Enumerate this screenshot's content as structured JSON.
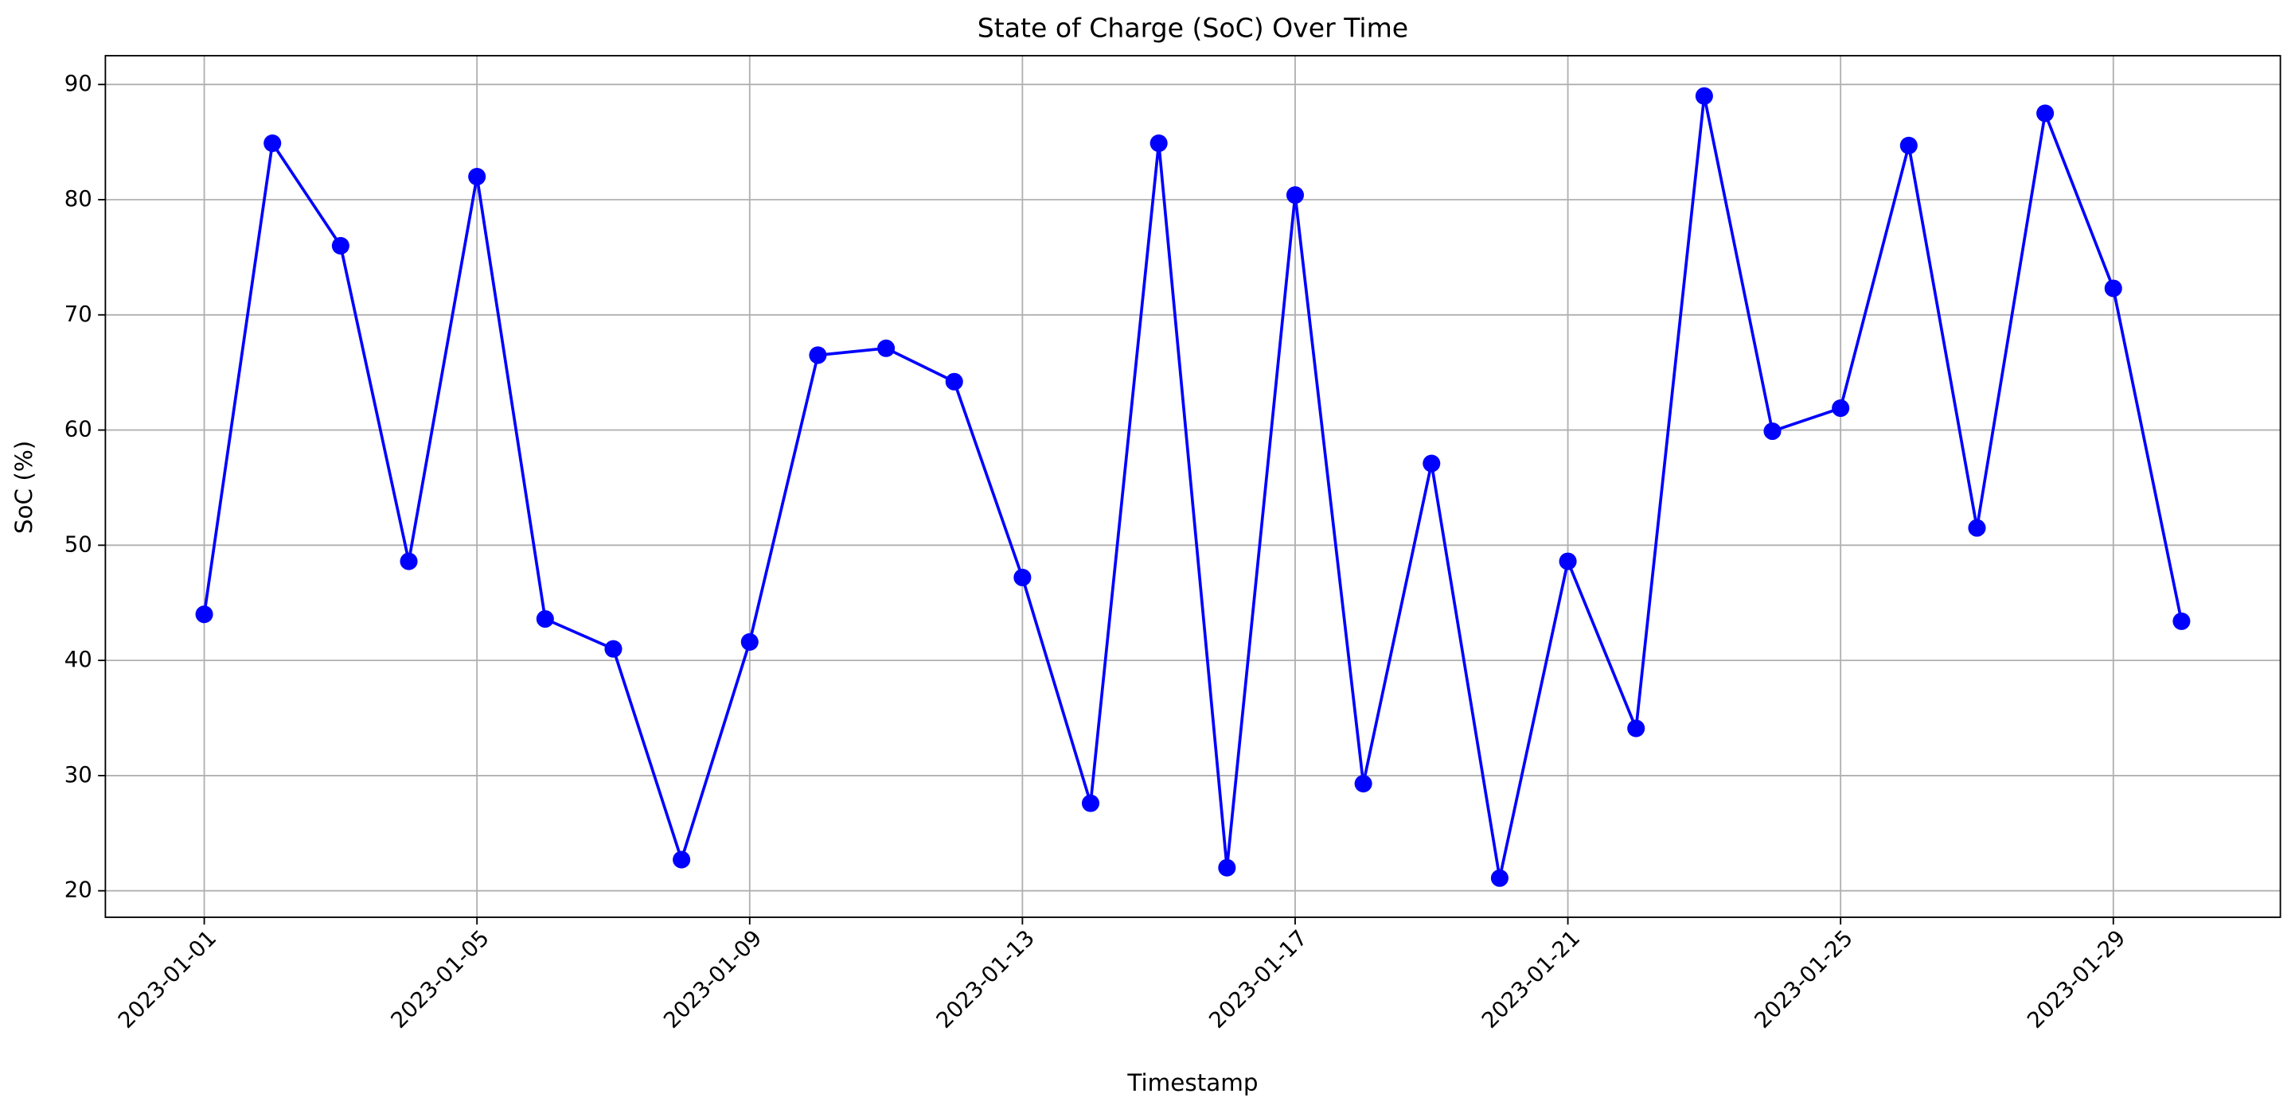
{
  "chart_data": {
    "type": "line",
    "title": "State of Charge (SoC) Over Time",
    "x_label": "Timestamp",
    "y_label": "SoC (%)",
    "x": [
      "2023-01-01",
      "2023-01-02",
      "2023-01-03",
      "2023-01-04",
      "2023-01-05",
      "2023-01-06",
      "2023-01-07",
      "2023-01-08",
      "2023-01-09",
      "2023-01-10",
      "2023-01-11",
      "2023-01-12",
      "2023-01-13",
      "2023-01-14",
      "2023-01-15",
      "2023-01-16",
      "2023-01-17",
      "2023-01-18",
      "2023-01-19",
      "2023-01-20",
      "2023-01-21",
      "2023-01-22",
      "2023-01-23",
      "2023-01-24",
      "2023-01-25",
      "2023-01-26",
      "2023-01-27",
      "2023-01-28",
      "2023-01-29",
      "2023-01-30"
    ],
    "values": [
      44.0,
      84.9,
      76.0,
      48.6,
      82.0,
      43.6,
      41.0,
      22.7,
      41.6,
      66.5,
      67.1,
      64.2,
      47.2,
      27.6,
      84.9,
      22.0,
      80.4,
      29.3,
      57.1,
      21.1,
      48.6,
      34.1,
      89.0,
      59.9,
      61.9,
      84.7,
      51.5,
      87.5,
      72.3,
      43.4
    ],
    "color": "#0000ff",
    "xticks": [
      "2023-01-01",
      "2023-01-05",
      "2023-01-09",
      "2023-01-13",
      "2023-01-17",
      "2023-01-21",
      "2023-01-25",
      "2023-01-29"
    ],
    "ylim": [
      17.7,
      92.5
    ],
    "yticks": [
      20,
      30,
      40,
      50,
      60,
      70,
      80,
      90
    ],
    "grid": true
  }
}
